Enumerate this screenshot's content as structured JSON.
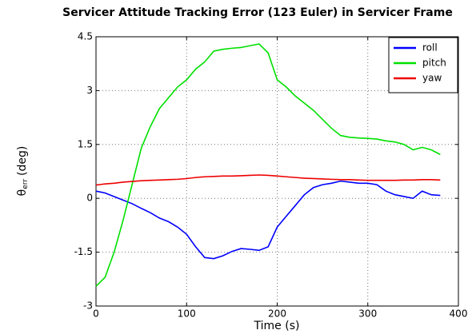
{
  "chart_data": {
    "type": "line",
    "title": "Servicer Attitude Tracking Error (123 Euler) in Servicer Frame",
    "xlabel": "Time (s)",
    "ylabel": {
      "symbol": "θ",
      "subscript": "err",
      "unit": "(deg)"
    },
    "x": [
      0,
      10,
      20,
      30,
      40,
      50,
      60,
      70,
      80,
      90,
      100,
      110,
      120,
      130,
      140,
      150,
      160,
      170,
      180,
      190,
      200,
      210,
      220,
      230,
      240,
      250,
      260,
      270,
      280,
      290,
      300,
      310,
      320,
      330,
      340,
      350,
      360,
      370,
      380
    ],
    "series": [
      {
        "name": "roll",
        "color": "#0000ff",
        "values": [
          0.2,
          0.15,
          0.05,
          -0.05,
          -0.15,
          -0.28,
          -0.4,
          -0.55,
          -0.65,
          -0.8,
          -1.0,
          -1.35,
          -1.65,
          -1.68,
          -1.6,
          -1.48,
          -1.4,
          -1.42,
          -1.45,
          -1.35,
          -0.8,
          -0.5,
          -0.2,
          0.1,
          0.3,
          0.38,
          0.42,
          0.48,
          0.45,
          0.42,
          0.42,
          0.38,
          0.2,
          0.1,
          0.05,
          0.0,
          0.2,
          0.1,
          0.08
        ]
      },
      {
        "name": "pitch",
        "color": "#00e000",
        "values": [
          -2.45,
          -2.2,
          -1.5,
          -0.6,
          0.4,
          1.4,
          2.0,
          2.5,
          2.8,
          3.1,
          3.3,
          3.6,
          3.8,
          4.1,
          4.15,
          4.18,
          4.2,
          4.25,
          4.3,
          4.05,
          3.3,
          3.1,
          2.85,
          2.65,
          2.45,
          2.2,
          1.95,
          1.75,
          1.7,
          1.68,
          1.67,
          1.65,
          1.6,
          1.57,
          1.5,
          1.35,
          1.42,
          1.35,
          1.22
        ]
      },
      {
        "name": "yaw",
        "color": "#ee0000",
        "values": [
          0.37,
          0.4,
          0.42,
          0.45,
          0.47,
          0.49,
          0.5,
          0.51,
          0.52,
          0.53,
          0.55,
          0.58,
          0.6,
          0.61,
          0.62,
          0.62,
          0.63,
          0.64,
          0.65,
          0.64,
          0.62,
          0.6,
          0.58,
          0.56,
          0.55,
          0.54,
          0.53,
          0.52,
          0.52,
          0.51,
          0.5,
          0.5,
          0.5,
          0.5,
          0.51,
          0.51,
          0.52,
          0.52,
          0.51
        ]
      }
    ],
    "xlim": [
      0,
      400
    ],
    "xticks": [
      0,
      100,
      200,
      300,
      400
    ],
    "ylim": [
      -3,
      4.5
    ],
    "yticks": [
      -3,
      -1.5,
      0,
      1.5,
      3,
      4.5
    ],
    "grid": true,
    "legend": "upper right"
  }
}
